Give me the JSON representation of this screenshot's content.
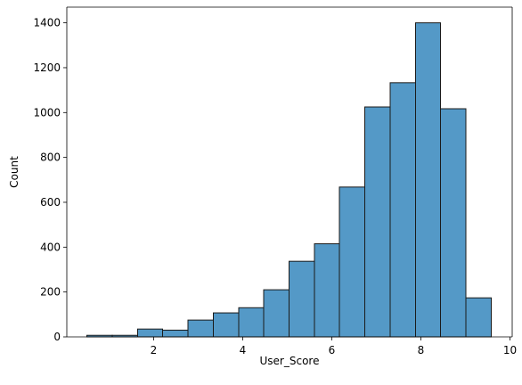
{
  "chart_data": {
    "type": "bar",
    "title": "",
    "xlabel": "User_Score",
    "ylabel": "Count",
    "xlim": [
      0.05,
      10.05
    ],
    "ylim": [
      0,
      1470
    ],
    "xticks": [
      2,
      4,
      6,
      8,
      10
    ],
    "yticks": [
      0,
      200,
      400,
      600,
      800,
      1000,
      1200,
      1400
    ],
    "grid": false,
    "bin_edges": [
      0.5,
      1.07,
      1.64,
      2.2,
      2.77,
      3.34,
      3.91,
      4.47,
      5.04,
      5.61,
      6.17,
      6.74,
      7.31,
      7.88,
      8.44,
      9.01,
      9.58
    ],
    "values": [
      7,
      7,
      35,
      30,
      75,
      107,
      130,
      210,
      337,
      415,
      668,
      1025,
      1133,
      1400,
      1017,
      174
    ],
    "colors": {
      "bar_fill": "#5499c7",
      "bar_edge": "#1a1a1a"
    }
  }
}
